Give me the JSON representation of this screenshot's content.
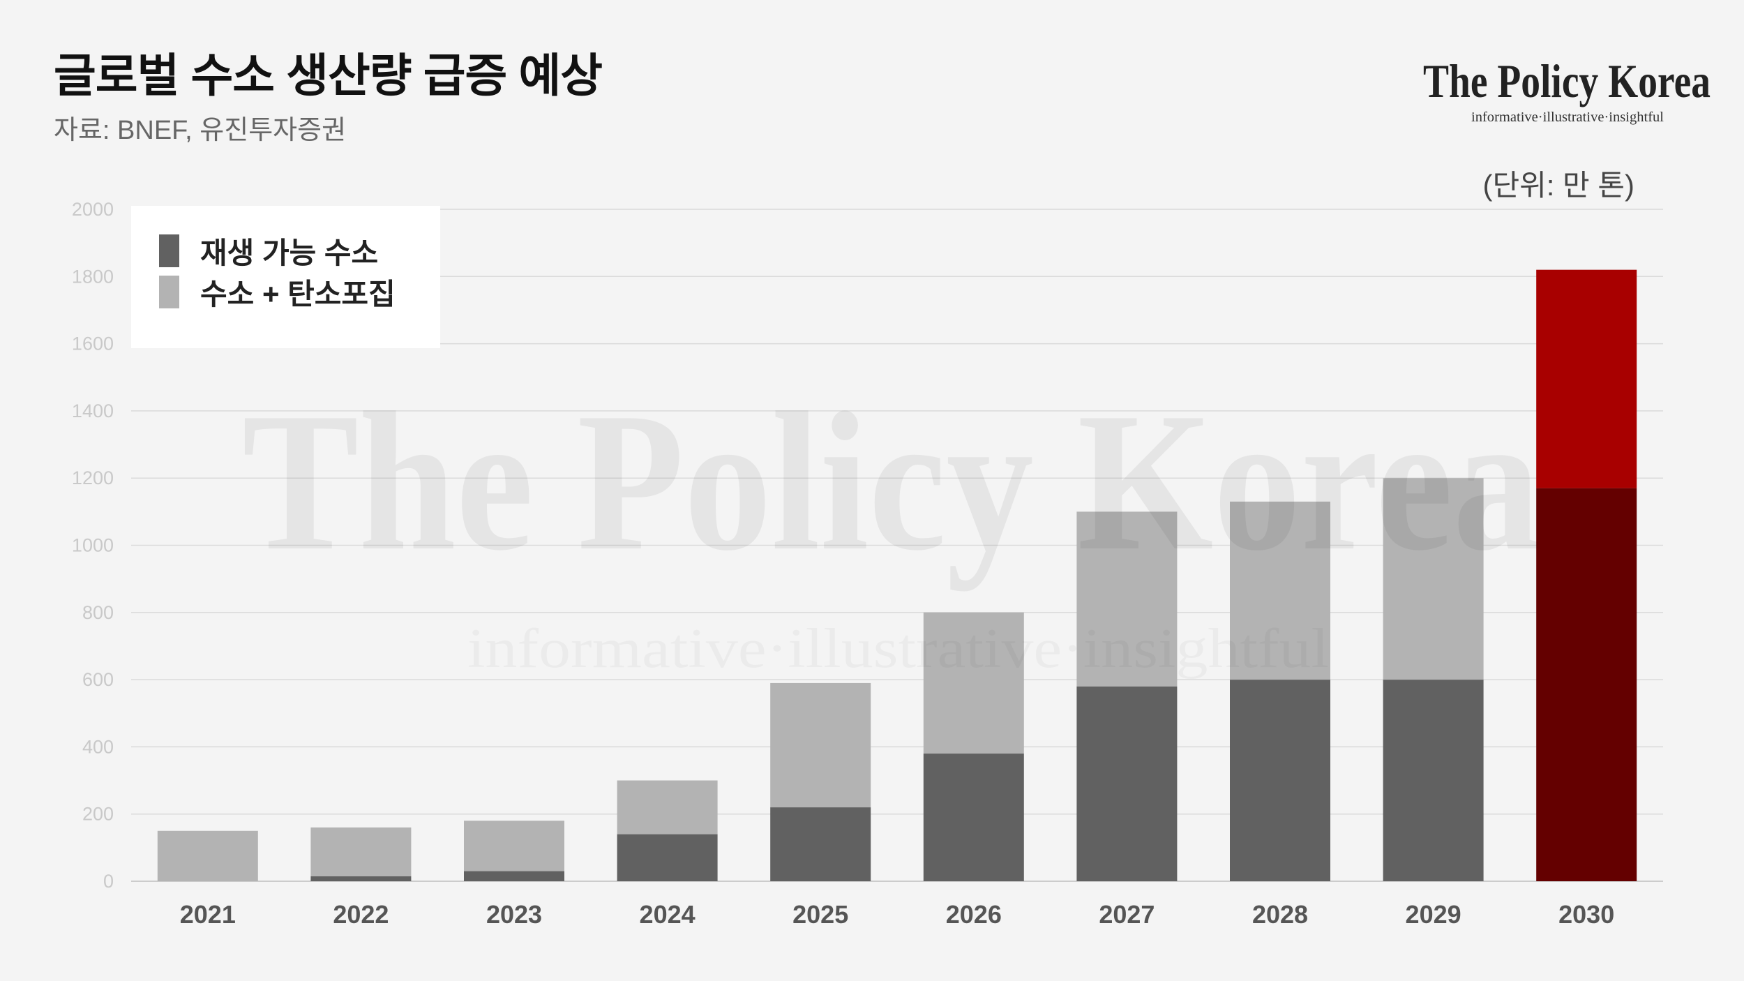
{
  "header": {
    "source": "자료: BNEF, 유진투자증권"
  },
  "logo": {
    "name": "The Policy Korea",
    "tagline": "informative·illustrative·insightful"
  },
  "watermark": {
    "name": "The Policy Korea",
    "tagline": "informative·illustrative·insightful"
  },
  "chart_data": {
    "type": "bar",
    "stacked": true,
    "title": "글로벌 수소 생산량 급증 예상",
    "unit": "(단위: 만 톤)",
    "xlabel": "",
    "ylabel": "",
    "categories": [
      "2021",
      "2022",
      "2023",
      "2024",
      "2025",
      "2026",
      "2027",
      "2028",
      "2029",
      "2030"
    ],
    "series": [
      {
        "name": "재생 가능 수소",
        "values": [
          0,
          15,
          30,
          140,
          220,
          380,
          580,
          600,
          600,
          1170
        ],
        "color": "#616161"
      },
      {
        "name": "수소 + 탄소포집",
        "values": [
          150,
          145,
          150,
          160,
          370,
          420,
          520,
          530,
          600,
          650
        ],
        "color": "#b3b3b3"
      }
    ],
    "highlight": {
      "category": "2030",
      "colors": [
        "#640000",
        "#a80000"
      ]
    },
    "ylim": [
      0,
      2000
    ],
    "yticks": [
      0,
      200,
      400,
      600,
      800,
      1000,
      1200,
      1400,
      1600,
      1800,
      2000
    ],
    "grid": true,
    "legend": "top-left"
  }
}
